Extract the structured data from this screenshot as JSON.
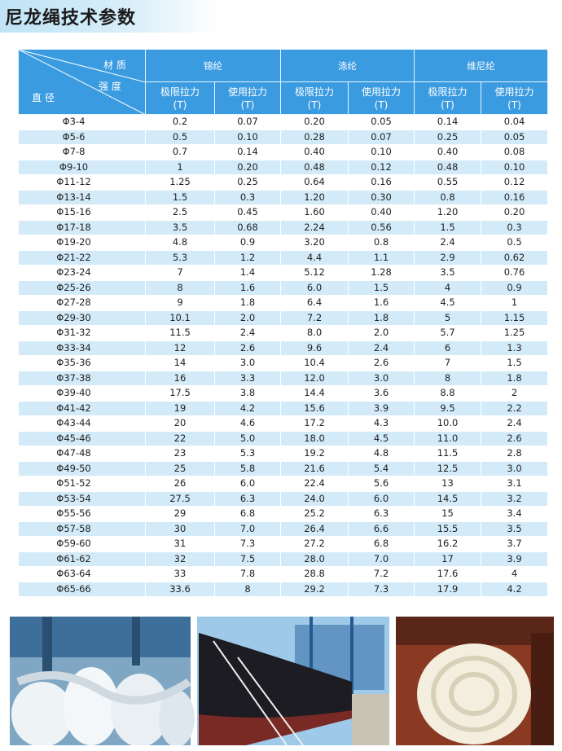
{
  "title": "尼龙绳技术参数",
  "table": {
    "corner": {
      "material": "材 质",
      "strength": "强 度",
      "diameter": "直 径"
    },
    "groups": [
      {
        "name": "锦纶",
        "columns": [
          {
            "name": "极限拉力",
            "unit": "(T)"
          },
          {
            "name": "使用拉力",
            "unit": "(T)"
          }
        ]
      },
      {
        "name": "涤纶",
        "columns": [
          {
            "name": "极限拉力",
            "unit": "(T)"
          },
          {
            "name": "使用拉力",
            "unit": "(T)"
          }
        ]
      },
      {
        "name": "维尼纶",
        "columns": [
          {
            "name": "极限拉力",
            "unit": "(T)"
          },
          {
            "name": "使用拉力",
            "unit": "(T)"
          }
        ]
      }
    ],
    "rows": [
      [
        "Φ3-4",
        "0.2",
        "0.07",
        "0.20",
        "0.05",
        "0.14",
        "0.04"
      ],
      [
        "Φ5-6",
        "0.5",
        "0.10",
        "0.28",
        "0.07",
        "0.25",
        "0.05"
      ],
      [
        "Φ7-8",
        "0.7",
        "0.14",
        "0.40",
        "0.10",
        "0.40",
        "0.08"
      ],
      [
        "Φ9-10",
        "1",
        "0.20",
        "0.48",
        "0.12",
        "0.48",
        "0.10"
      ],
      [
        "Φ11-12",
        "1.25",
        "0.25",
        "0.64",
        "0.16",
        "0.55",
        "0.12"
      ],
      [
        "Φ13-14",
        "1.5",
        "0.3",
        "1.20",
        "0.30",
        "0.8",
        "0.16"
      ],
      [
        "Φ15-16",
        "2.5",
        "0.45",
        "1.60",
        "0.40",
        "1.20",
        "0.20"
      ],
      [
        "Φ17-18",
        "3.5",
        "0.68",
        "2.24",
        "0.56",
        "1.5",
        "0.3"
      ],
      [
        "Φ19-20",
        "4.8",
        "0.9",
        "3.20",
        "0.8",
        "2.4",
        "0.5"
      ],
      [
        "Φ21-22",
        "5.3",
        "1.2",
        "4.4",
        "1.1",
        "2.9",
        "0.62"
      ],
      [
        "Φ23-24",
        "7",
        "1.4",
        "5.12",
        "1.28",
        "3.5",
        "0.76"
      ],
      [
        "Φ25-26",
        "8",
        "1.6",
        "6.0",
        "1.5",
        "4",
        "0.9"
      ],
      [
        "Φ27-28",
        "9",
        "1.8",
        "6.4",
        "1.6",
        "4.5",
        "1"
      ],
      [
        "Φ29-30",
        "10.1",
        "2.0",
        "7.2",
        "1.8",
        "5",
        "1.15"
      ],
      [
        "Φ31-32",
        "11.5",
        "2.4",
        "8.0",
        "2.0",
        "5.7",
        "1.25"
      ],
      [
        "Φ33-34",
        "12",
        "2.6",
        "9.6",
        "2.4",
        "6",
        "1.3"
      ],
      [
        "Φ35-36",
        "14",
        "3.0",
        "10.4",
        "2.6",
        "7",
        "1.5"
      ],
      [
        "Φ37-38",
        "16",
        "3.3",
        "12.0",
        "3.0",
        "8",
        "1.8"
      ],
      [
        "Φ39-40",
        "17.5",
        "3.8",
        "14.4",
        "3.6",
        "8.8",
        "2"
      ],
      [
        "Φ41-42",
        "19",
        "4.2",
        "15.6",
        "3.9",
        "9.5",
        "2.2"
      ],
      [
        "Φ43-44",
        "20",
        "4.6",
        "17.2",
        "4.3",
        "10.0",
        "2.4"
      ],
      [
        "Φ45-46",
        "22",
        "5.0",
        "18.0",
        "4.5",
        "11.0",
        "2.6"
      ],
      [
        "Φ47-48",
        "23",
        "5.3",
        "19.2",
        "4.8",
        "11.5",
        "2.8"
      ],
      [
        "Φ49-50",
        "25",
        "5.8",
        "21.6",
        "5.4",
        "12.5",
        "3.0"
      ],
      [
        "Φ51-52",
        "26",
        "6.0",
        "22.4",
        "5.6",
        "13",
        "3.1"
      ],
      [
        "Φ53-54",
        "27.5",
        "6.3",
        "24.0",
        "6.0",
        "14.5",
        "3.2"
      ],
      [
        "Φ55-56",
        "29",
        "6.8",
        "25.2",
        "6.3",
        "15",
        "3.4"
      ],
      [
        "Φ57-58",
        "30",
        "7.0",
        "26.4",
        "6.6",
        "15.5",
        "3.5"
      ],
      [
        "Φ59-60",
        "31",
        "7.3",
        "27.2",
        "6.8",
        "16.2",
        "3.7"
      ],
      [
        "Φ61-62",
        "32",
        "7.5",
        "28.0",
        "7.0",
        "17",
        "3.9"
      ],
      [
        "Φ63-64",
        "33",
        "7.8",
        "28.8",
        "7.2",
        "17.6",
        "4"
      ],
      [
        "Φ65-66",
        "33.6",
        "8",
        "29.2",
        "7.3",
        "17.9",
        "4.2"
      ]
    ]
  }
}
